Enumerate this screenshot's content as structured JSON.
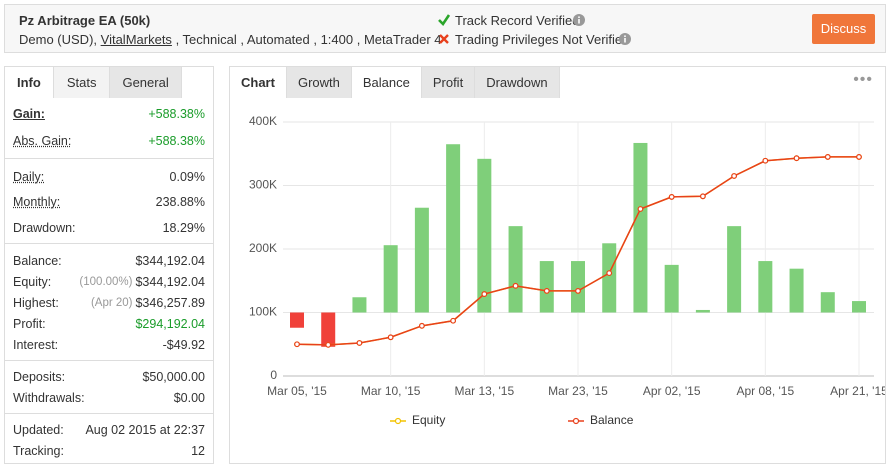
{
  "header": {
    "title": "Pz Arbitrage EA (50k)",
    "account": "Demo (USD),",
    "broker": "VitalMarkets",
    "details": ", Technical , Automated , 1:400 , MetaTrader 4",
    "track_record": "Track Record Verified",
    "trading_privileges": "Trading Privileges Not Verified",
    "discuss": "Discuss"
  },
  "left_panel": {
    "tabs": [
      "Info",
      "Stats",
      "General"
    ],
    "groups": [
      [
        {
          "label": "Gain:",
          "value": "+588.38%",
          "color": "#1a9c2a",
          "strong": true
        },
        {
          "label": "Abs. Gain:",
          "value": "+588.38%",
          "color": "#1a9c2a",
          "underline": true
        }
      ],
      [
        {
          "label": "Daily:",
          "value": "0.09%",
          "underline": true
        },
        {
          "label": "Monthly:",
          "value": "238.88%",
          "underline": true
        },
        {
          "label": "Drawdown:",
          "value": "18.29%"
        }
      ],
      [
        {
          "label": "Balance:",
          "value": "$344,192.04"
        },
        {
          "label": "Equity:",
          "note": "(100.00%)",
          "value": "$344,192.04"
        },
        {
          "label": "Highest:",
          "note": "(Apr 20)",
          "value": "$346,257.89"
        },
        {
          "label": "Profit:",
          "value": "$294,192.04",
          "color": "#1a9c2a"
        },
        {
          "label": "Interest:",
          "value": "-$49.92"
        }
      ],
      [
        {
          "label": "Deposits:",
          "value": "$50,000.00"
        },
        {
          "label": "Withdrawals:",
          "value": "$0.00"
        }
      ],
      [
        {
          "label": "Updated:",
          "value": "Aug 02 2015 at 22:37"
        },
        {
          "label": "Tracking:",
          "value": "12"
        }
      ]
    ]
  },
  "chart_panel": {
    "tabs": [
      "Chart",
      "Growth",
      "Balance",
      "Profit",
      "Drawdown"
    ],
    "chart_data": {
      "type": "line",
      "categories": [
        "Mar 05, '15",
        null,
        null,
        "Mar 10, '15",
        null,
        null,
        "Mar 13, '15",
        null,
        null,
        "Mar 23, '15",
        null,
        null,
        "Apr 02, '15",
        null,
        null,
        "Apr 08, '15",
        null,
        null,
        "Apr 21, '15"
      ],
      "ylim": [
        0,
        400000
      ],
      "yticks": [
        {
          "value": 0,
          "label": "0"
        },
        {
          "value": 100000,
          "label": "100K"
        },
        {
          "value": 200000,
          "label": "200K"
        },
        {
          "value": 300000,
          "label": "300K"
        },
        {
          "value": 400000,
          "label": "400K"
        }
      ],
      "grid": true,
      "bars": {
        "base": 100000,
        "up_color": "#7fcf7a",
        "down_color": "#f0413a",
        "values": [
          76000,
          46000,
          124000,
          206000,
          265000,
          365000,
          342000,
          236000,
          181000,
          181000,
          209000,
          367000,
          175000,
          104000,
          236000,
          181000,
          169000,
          132000,
          118000
        ]
      },
      "series": [
        {
          "name": "Equity",
          "color": "#f2c200",
          "values": [
            50000,
            49000,
            52000,
            61000,
            79000,
            87000,
            129000,
            142000,
            134000,
            134000,
            162000,
            263000,
            282000,
            283000,
            315000,
            339000,
            343000,
            345000,
            345000
          ]
        },
        {
          "name": "Balance",
          "color": "#e8401c",
          "values": [
            50000,
            49000,
            52000,
            61000,
            79000,
            87000,
            129000,
            142000,
            134000,
            134000,
            162000,
            263000,
            282000,
            283000,
            315000,
            339000,
            343000,
            345000,
            345000
          ]
        }
      ]
    }
  }
}
